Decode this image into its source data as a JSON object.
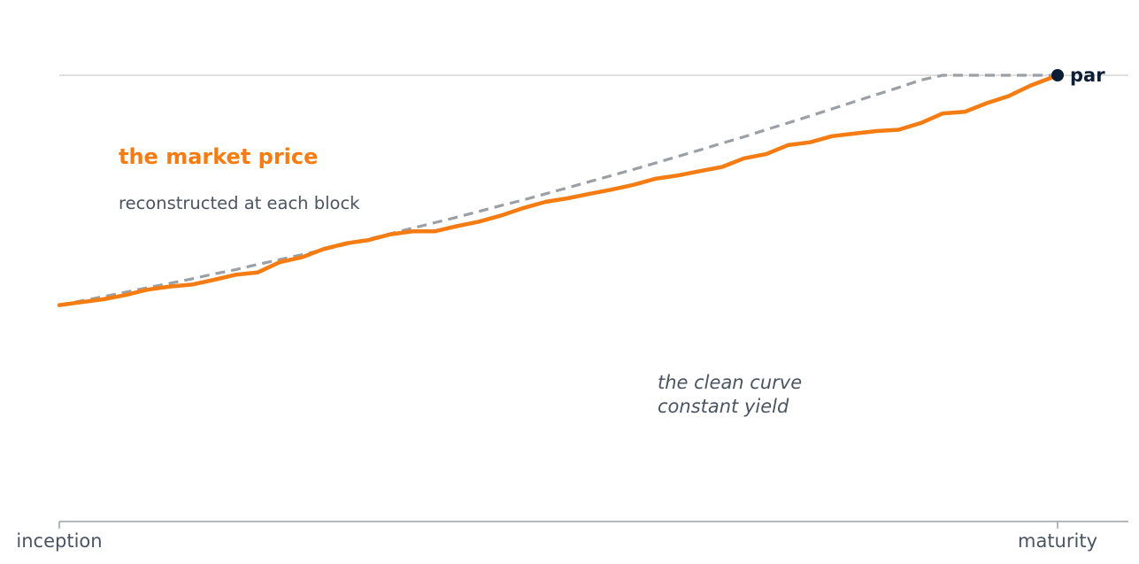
{
  "chart_data": {
    "type": "line",
    "title": "",
    "xlabel": "",
    "ylabel": "",
    "x_ticks": [
      "inception",
      "maturity"
    ],
    "x": [
      0,
      2.2,
      4.4,
      6.6,
      8.8,
      11.1,
      13.3,
      15.5,
      17.7,
      19.9,
      22.1,
      24.3,
      26.5,
      28.8,
      31,
      33.2,
      35.4,
      37.6,
      39.8,
      42,
      44.2,
      46.5,
      48.7,
      50.9,
      53.1,
      55.3,
      57.5,
      59.7,
      61.9,
      64.2,
      66.4,
      68.6,
      70.8,
      73,
      75.2,
      77.4,
      79.6,
      81.9,
      84.1,
      86.3,
      88.5,
      90.7,
      92.9,
      95.1,
      97.3,
      100
    ],
    "xlim": [
      0,
      100
    ],
    "ylim": [
      0,
      100
    ],
    "grid": false,
    "legend": "none",
    "series": [
      {
        "name": "the market price",
        "annotation": [
          "the market price",
          "reconstructed at each block"
        ],
        "color": "#f57c12",
        "style": "solid",
        "values": [
          28.3,
          29.2,
          30.1,
          31.4,
          33.1,
          34.1,
          34.7,
          36.2,
          37.8,
          38.5,
          41.7,
          43.2,
          45.8,
          47.6,
          48.6,
          50.4,
          51.3,
          51.3,
          52.9,
          54.3,
          56.2,
          58.6,
          60.5,
          61.6,
          63.0,
          64.3,
          65.8,
          67.7,
          68.7,
          70.1,
          71.4,
          74.1,
          75.4,
          78.2,
          79.1,
          81.0,
          81.8,
          82.6,
          83.0,
          85.1,
          88.1,
          88.6,
          91.3,
          93.5,
          96.8,
          100
        ]
      },
      {
        "name": "the clean curve",
        "annotation": [
          "the clean curve",
          "constant yield"
        ],
        "color": "#9aa0a6",
        "style": "dashed",
        "values": [
          28.3,
          29.6,
          30.9,
          32.3,
          33.7,
          35.1,
          36.5,
          38.0,
          39.4,
          41.0,
          42.5,
          44.0,
          45.6,
          47.3,
          48.9,
          50.6,
          52.3,
          54.0,
          55.7,
          57.5,
          59.3,
          61.1,
          63.0,
          64.9,
          66.8,
          68.7,
          70.6,
          72.6,
          74.6,
          76.7,
          78.8,
          80.8,
          83.0,
          85.1,
          87.3,
          89.5,
          91.7,
          94.0,
          96.2,
          98.5,
          100,
          100,
          100,
          100,
          100,
          100
        ]
      }
    ],
    "reference": {
      "label": "par",
      "y": 100,
      "color": "#0b1e35"
    },
    "axis_color": "#9aa0a6",
    "label_color": "#4a5561"
  }
}
